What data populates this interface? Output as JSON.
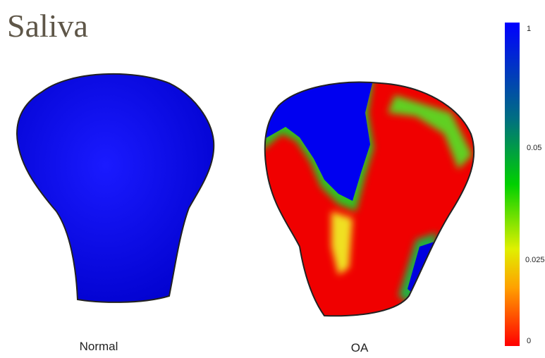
{
  "header": {
    "title": "Saliva"
  },
  "panels": [
    {
      "label": "Normal"
    },
    {
      "label": "OA"
    }
  ],
  "colorbar": {
    "ticks": [
      "1",
      "0.05",
      "0.025",
      "0"
    ]
  }
}
